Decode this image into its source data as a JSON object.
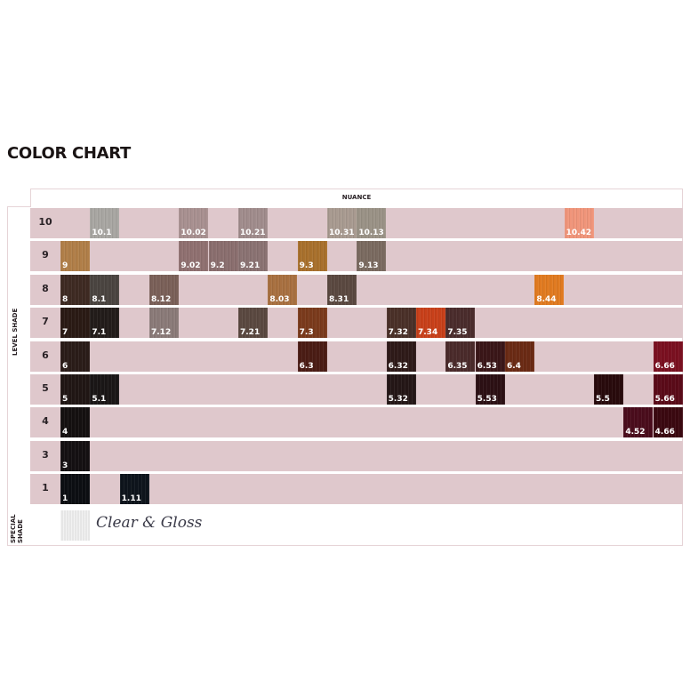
{
  "title": "COLOR CHART",
  "nuance_label": "NUANCE",
  "level_label": "LEVEL SHADE",
  "special_label": "SPECIAL SHADE",
  "special": {
    "label": "Clear & Gloss",
    "color": "#e6e6e6"
  },
  "row_bg": "#dfc8cc",
  "chart_data": {
    "type": "table",
    "title": "COLOR CHART",
    "column_header": "NUANCE",
    "row_header": "LEVEL SHADE",
    "rows": [
      {
        "level": "10",
        "cells": [
          null,
          {
            "label": "10.1",
            "color": "#a8a6a2"
          },
          null,
          null,
          {
            "label": "10.02",
            "color": "#a89090"
          },
          null,
          {
            "label": "10.21",
            "color": "#a08c8c"
          },
          null,
          null,
          {
            "label": "10.31",
            "color": "#a89a90"
          },
          {
            "label": "10.13",
            "color": "#9a9286"
          },
          null,
          null,
          null,
          null,
          null,
          null,
          {
            "label": "10.42",
            "color": "#f0957a"
          },
          null,
          null,
          null
        ]
      },
      {
        "level": "9",
        "cells": [
          {
            "label": "9",
            "color": "#b07e48"
          },
          null,
          null,
          null,
          {
            "label": "9.02",
            "color": "#8f7070"
          },
          {
            "label": "9.2",
            "color": "#8a6e6e"
          },
          {
            "label": "9.21",
            "color": "#8a7272"
          },
          null,
          {
            "label": "9.3",
            "color": "#a8702c"
          },
          null,
          {
            "label": "9.13",
            "color": "#7a6a60"
          },
          null,
          null,
          null,
          null,
          null,
          null,
          null,
          null,
          null,
          null
        ]
      },
      {
        "level": "8",
        "cells": [
          {
            "label": "8",
            "color": "#3e2a22"
          },
          {
            "label": "8.1",
            "color": "#4a4440"
          },
          null,
          {
            "label": "8.12",
            "color": "#7a6058"
          },
          null,
          null,
          null,
          {
            "label": "8.03",
            "color": "#a87040"
          },
          null,
          {
            "label": "8.31",
            "color": "#5a4840"
          },
          null,
          null,
          null,
          null,
          null,
          null,
          {
            "label": "8.44",
            "color": "#e07a20"
          },
          null,
          null,
          null,
          null
        ]
      },
      {
        "level": "7",
        "cells": [
          {
            "label": "7",
            "color": "#2a1a14"
          },
          {
            "label": "7.1",
            "color": "#221c1a"
          },
          null,
          {
            "label": "7.12",
            "color": "#8a7a78"
          },
          null,
          null,
          {
            "label": "7.21",
            "color": "#5a4840"
          },
          null,
          {
            "label": "7.3",
            "color": "#7a3a1c"
          },
          null,
          null,
          {
            "label": "7.32",
            "color": "#4a3028"
          },
          {
            "label": "7.34",
            "color": "#c8401a"
          },
          {
            "label": "7.35",
            "color": "#4a2c2c"
          },
          null,
          null,
          null,
          null,
          null,
          null,
          null
        ]
      },
      {
        "level": "6",
        "cells": [
          {
            "label": "6",
            "color": "#2a1c18"
          },
          null,
          null,
          null,
          null,
          null,
          null,
          null,
          {
            "label": "6.3",
            "color": "#4a1c14"
          },
          null,
          null,
          {
            "label": "6.32",
            "color": "#2e1a18"
          },
          null,
          {
            "label": "6.35",
            "color": "#4a2a2a"
          },
          {
            "label": "6.53",
            "color": "#3a1618"
          },
          {
            "label": "6.4",
            "color": "#6a2a14"
          },
          null,
          null,
          null,
          null,
          {
            "label": "6.66",
            "color": "#7a1020"
          }
        ]
      },
      {
        "level": "5",
        "cells": [
          {
            "label": "5",
            "color": "#201614"
          },
          {
            "label": "5.1",
            "color": "#1a1616"
          },
          null,
          null,
          null,
          null,
          null,
          null,
          null,
          null,
          null,
          {
            "label": "5.32",
            "color": "#241616"
          },
          null,
          null,
          {
            "label": "5.53",
            "color": "#2c1014"
          },
          null,
          null,
          null,
          {
            "label": "5.5",
            "color": "#280a0c"
          },
          null,
          {
            "label": "5.66",
            "color": "#5a0a18"
          }
        ]
      },
      {
        "level": "4",
        "cells": [
          {
            "label": "4",
            "color": "#141010"
          },
          null,
          null,
          null,
          null,
          null,
          null,
          null,
          null,
          null,
          null,
          null,
          null,
          null,
          null,
          null,
          null,
          null,
          null,
          {
            "label": "4.52",
            "color": "#4a0c1c"
          },
          {
            "label": "4.66",
            "color": "#3a0810"
          }
        ]
      },
      {
        "level": "3",
        "cells": [
          {
            "label": "3",
            "color": "#141012"
          },
          null,
          null,
          null,
          null,
          null,
          null,
          null,
          null,
          null,
          null,
          null,
          null,
          null,
          null,
          null,
          null,
          null,
          null,
          null,
          null
        ]
      },
      {
        "level": "1",
        "cells": [
          {
            "label": "1",
            "color": "#0c0e12"
          },
          null,
          {
            "label": "1.11",
            "color": "#0e141c"
          },
          null,
          null,
          null,
          null,
          null,
          null,
          null,
          null,
          null,
          null,
          null,
          null,
          null,
          null,
          null,
          null,
          null,
          null
        ]
      }
    ]
  }
}
